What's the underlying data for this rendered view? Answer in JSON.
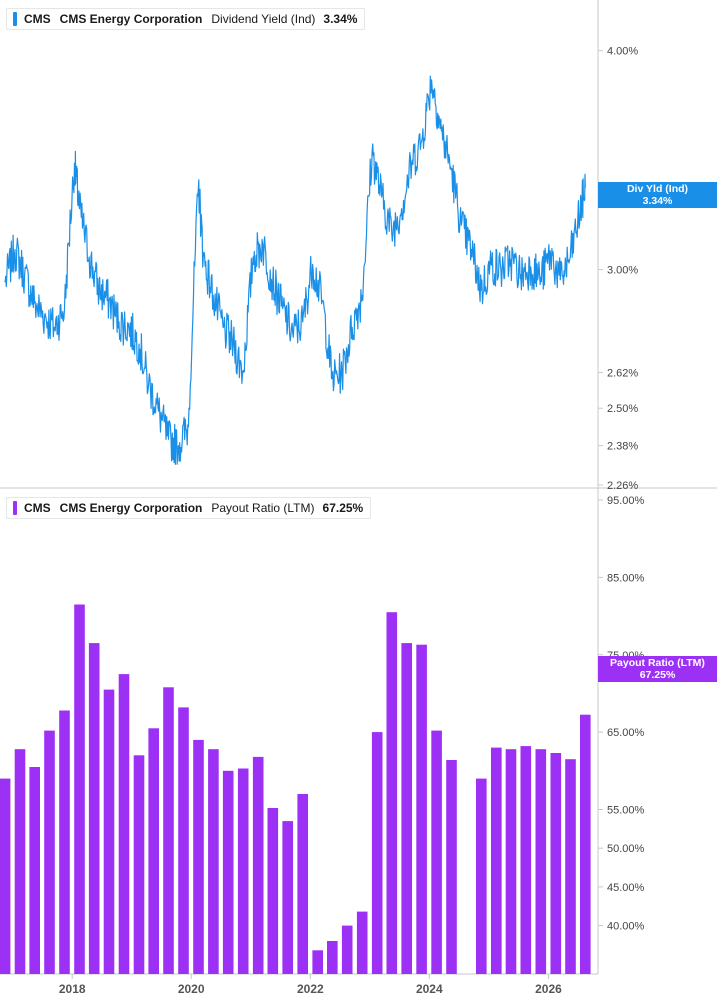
{
  "panels": [
    {
      "legend": {
        "symbol": "CMS",
        "company": "CMS Energy Corporation",
        "metric": "Dividend Yield (Ind)",
        "value": "3.34%"
      },
      "axis_tag": {
        "label": "Div Yld (Ind)",
        "value": "3.34%"
      }
    },
    {
      "legend": {
        "symbol": "CMS",
        "company": "CMS Energy Corporation",
        "metric": "Payout Ratio (LTM)",
        "value": "67.25%"
      },
      "axis_tag": {
        "label": "Payout Ratio (LTM)",
        "value": "67.25%"
      }
    }
  ],
  "chart_data": [
    {
      "type": "line",
      "title": "CMS CMS Energy Corporation Dividend Yield (Ind)",
      "color": "#1a8fe8",
      "y_scale": "log",
      "ylim": [
        2.26,
        4.22
      ],
      "y_ticks": [
        "4.00%",
        "3.00%",
        "2.62%",
        "2.50%",
        "2.38%",
        "2.26%"
      ],
      "x_ticks": [
        "2018",
        "2020",
        "2022",
        "2024",
        "2026"
      ],
      "series": [
        {
          "name": "Dividend Yield (Ind)",
          "x": [
            "2016-11",
            "2017-01",
            "2017-03",
            "2017-05",
            "2017-07",
            "2017-09",
            "2017-11",
            "2018-01",
            "2018-02",
            "2018-04",
            "2018-06",
            "2018-08",
            "2018-10",
            "2018-12",
            "2019-02",
            "2019-04",
            "2019-06",
            "2019-08",
            "2019-10",
            "2019-12",
            "2020-02",
            "2020-03",
            "2020-05",
            "2020-07",
            "2020-09",
            "2020-11",
            "2021-01",
            "2021-03",
            "2021-05",
            "2021-07",
            "2021-09",
            "2021-11",
            "2022-01",
            "2022-03",
            "2022-05",
            "2022-07",
            "2022-09",
            "2022-11",
            "2023-01",
            "2023-03",
            "2023-05",
            "2023-07",
            "2023-09",
            "2023-11",
            "2024-01",
            "2024-03",
            "2024-05",
            "2024-07",
            "2024-09",
            "2024-11",
            "2025-01",
            "2025-03",
            "2025-05",
            "2025-07",
            "2025-09",
            "2025-11",
            "2026-01",
            "2026-03",
            "2026-05",
            "2026-07",
            "2026-08"
          ],
          "values": [
            2.95,
            3.08,
            2.98,
            2.87,
            2.82,
            2.78,
            2.85,
            3.45,
            3.25,
            3.05,
            2.92,
            2.88,
            2.8,
            2.78,
            2.72,
            2.58,
            2.49,
            2.4,
            2.38,
            2.44,
            3.35,
            3.05,
            2.9,
            2.78,
            2.72,
            2.62,
            3.05,
            3.1,
            2.95,
            2.85,
            2.76,
            2.8,
            3.02,
            2.88,
            2.6,
            2.62,
            2.78,
            2.9,
            3.5,
            3.3,
            3.15,
            3.25,
            3.45,
            3.55,
            3.85,
            3.6,
            3.42,
            3.18,
            3.08,
            2.92,
            3.02,
            3.0,
            3.04,
            2.98,
            3.01,
            2.97,
            3.06,
            2.96,
            3.05,
            3.24,
            3.34
          ]
        }
      ]
    },
    {
      "type": "bar",
      "title": "CMS CMS Energy Corporation Payout Ratio (LTM)",
      "color": "#9d30f5",
      "ylim": [
        34,
        95
      ],
      "y_ticks": [
        "95.00%",
        "85.00%",
        "75.00%",
        "65.00%",
        "55.00%",
        "50.00%",
        "45.00%",
        "40.00%"
      ],
      "x_ticks": [
        "2018",
        "2020",
        "2022",
        "2024",
        "2026"
      ],
      "categories": [
        "2016-Q4",
        "2017-Q1",
        "2017-Q2",
        "2017-Q3",
        "2017-Q4",
        "2018-Q1",
        "2018-Q2",
        "2018-Q3",
        "2018-Q4",
        "2019-Q1",
        "2019-Q2",
        "2019-Q3",
        "2019-Q4",
        "2020-Q1",
        "2020-Q2",
        "2020-Q3",
        "2020-Q4",
        "2021-Q1",
        "2021-Q2",
        "2021-Q3",
        "2021-Q4",
        "2022-Q1",
        "2022-Q2",
        "2022-Q3",
        "2022-Q4",
        "2023-Q1",
        "2023-Q2",
        "2023-Q3",
        "2023-Q4",
        "2024-Q1",
        "2024-Q2",
        "2024-Q3",
        "2024-Q4",
        "2025-Q1",
        "2025-Q2",
        "2025-Q3",
        "2025-Q4",
        "2026-Q1",
        "2026-Q2",
        "2026-Q3"
      ],
      "series": [
        {
          "name": "Payout Ratio (LTM)",
          "values": [
            59.0,
            62.8,
            60.5,
            65.2,
            67.8,
            81.5,
            76.5,
            70.5,
            72.5,
            62.0,
            65.5,
            70.8,
            68.2,
            64.0,
            62.8,
            60.0,
            60.3,
            61.8,
            55.2,
            53.5,
            57.0,
            36.8,
            38.0,
            40.0,
            41.8,
            65.0,
            80.5,
            76.5,
            76.3,
            65.2,
            61.4,
            null,
            59.0,
            63.0,
            62.8,
            63.2,
            62.8,
            62.3,
            61.5,
            67.25
          ]
        }
      ]
    }
  ]
}
